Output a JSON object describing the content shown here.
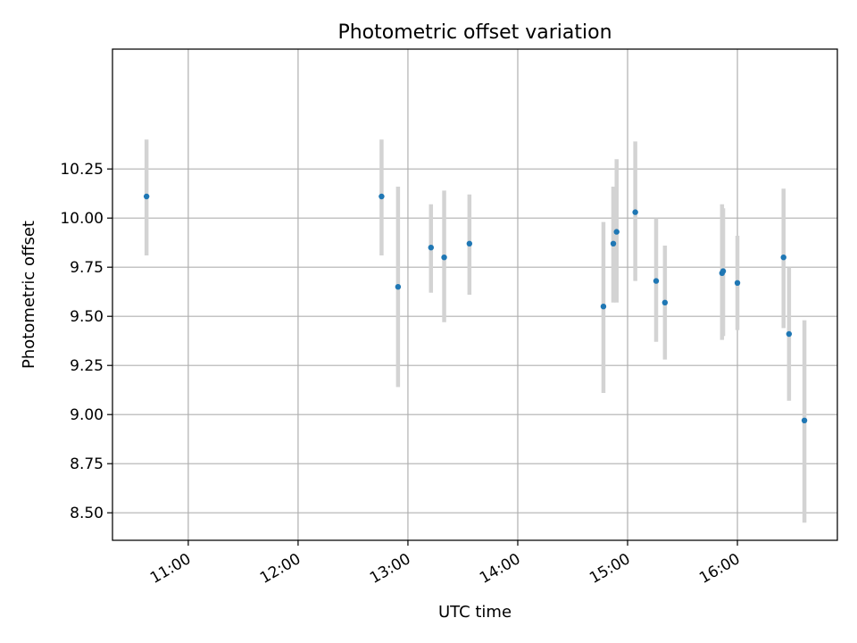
{
  "chart_data": {
    "type": "scatter",
    "title": "Photometric offset variation",
    "xlabel": "UTC time",
    "ylabel": "Photometric offset",
    "grid": true,
    "xlim_hours": [
      10.31,
      16.91
    ],
    "ylim": [
      8.36,
      10.86
    ],
    "x_ticks": [
      {
        "value": 11,
        "label": "11:00"
      },
      {
        "value": 12,
        "label": "12:00"
      },
      {
        "value": 13,
        "label": "13:00"
      },
      {
        "value": 14,
        "label": "14:00"
      },
      {
        "value": 15,
        "label": "15:00"
      },
      {
        "value": 16,
        "label": "16:00"
      }
    ],
    "y_ticks": [
      {
        "value": 8.5,
        "label": "8.50"
      },
      {
        "value": 8.75,
        "label": "8.75"
      },
      {
        "value": 9.0,
        "label": "9.00"
      },
      {
        "value": 9.25,
        "label": "9.25"
      },
      {
        "value": 9.5,
        "label": "9.50"
      },
      {
        "value": 9.75,
        "label": "9.75"
      },
      {
        "value": 10.0,
        "label": "10.00"
      },
      {
        "value": 10.25,
        "label": "10.25"
      }
    ],
    "colors": {
      "marker": "#1f77b4",
      "errorbar": "#d3d3d3",
      "grid": "#b0b0b0",
      "axes": "#000000"
    },
    "points": [
      {
        "x": 10.62,
        "y": 10.11,
        "ylow": 9.81,
        "yhigh": 10.4
      },
      {
        "x": 12.76,
        "y": 10.11,
        "ylow": 9.81,
        "yhigh": 10.4
      },
      {
        "x": 12.91,
        "y": 9.65,
        "ylow": 9.14,
        "yhigh": 10.16
      },
      {
        "x": 13.21,
        "y": 9.85,
        "ylow": 9.62,
        "yhigh": 10.07
      },
      {
        "x": 13.33,
        "y": 9.8,
        "ylow": 9.47,
        "yhigh": 10.14
      },
      {
        "x": 13.56,
        "y": 9.87,
        "ylow": 9.61,
        "yhigh": 10.12
      },
      {
        "x": 14.78,
        "y": 9.55,
        "ylow": 9.11,
        "yhigh": 9.98
      },
      {
        "x": 14.87,
        "y": 9.87,
        "ylow": 9.57,
        "yhigh": 10.16
      },
      {
        "x": 14.9,
        "y": 9.93,
        "ylow": 9.57,
        "yhigh": 10.3
      },
      {
        "x": 15.07,
        "y": 10.03,
        "ylow": 9.68,
        "yhigh": 10.39
      },
      {
        "x": 15.26,
        "y": 9.68,
        "ylow": 9.37,
        "yhigh": 10.0
      },
      {
        "x": 15.34,
        "y": 9.57,
        "ylow": 9.28,
        "yhigh": 9.86
      },
      {
        "x": 15.86,
        "y": 9.72,
        "ylow": 9.38,
        "yhigh": 10.07
      },
      {
        "x": 15.87,
        "y": 9.73,
        "ylow": 9.4,
        "yhigh": 10.05
      },
      {
        "x": 16.0,
        "y": 9.67,
        "ylow": 9.43,
        "yhigh": 9.91
      },
      {
        "x": 16.42,
        "y": 9.8,
        "ylow": 9.44,
        "yhigh": 10.15
      },
      {
        "x": 16.47,
        "y": 9.41,
        "ylow": 9.07,
        "yhigh": 9.75
      },
      {
        "x": 16.61,
        "y": 8.97,
        "ylow": 8.45,
        "yhigh": 9.48
      }
    ]
  }
}
